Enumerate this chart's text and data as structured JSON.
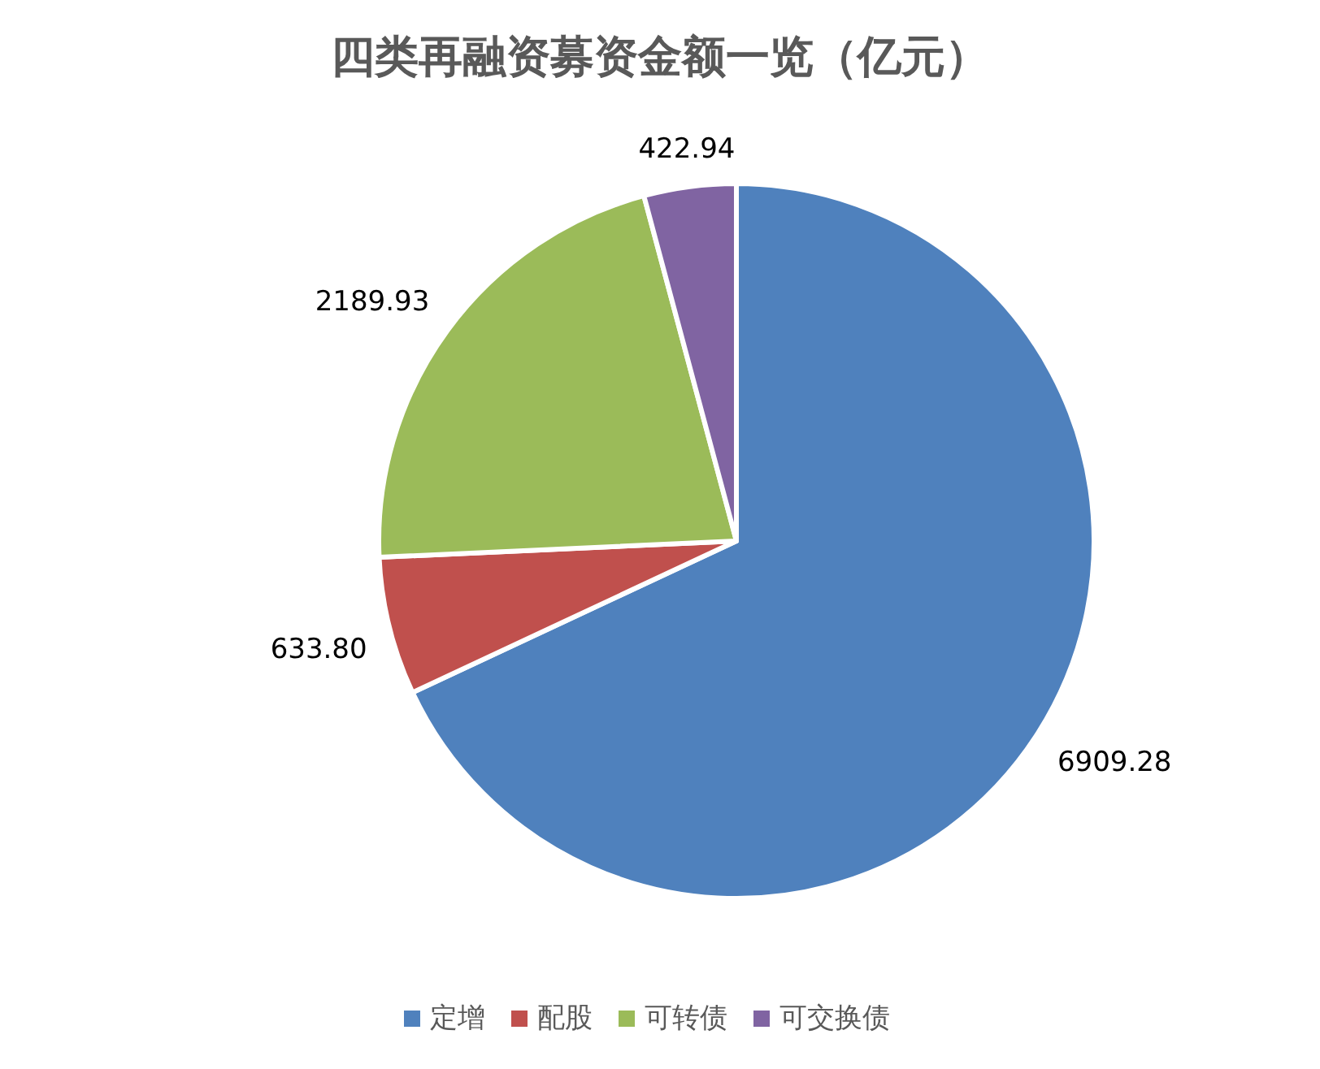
{
  "chart_data": {
    "type": "pie",
    "title": "四类再融资募资金额一览（亿元）",
    "categories": [
      "定增",
      "配股",
      "可转债",
      "可交换债"
    ],
    "values": [
      6909.28,
      633.8,
      2189.93,
      422.94
    ],
    "value_labels": [
      "6909.28",
      "633.80",
      "2189.93",
      "422.94"
    ],
    "colors": [
      "#4f81bd",
      "#c0504d",
      "#9bbb59",
      "#8064a2"
    ],
    "legend": "bottom"
  }
}
